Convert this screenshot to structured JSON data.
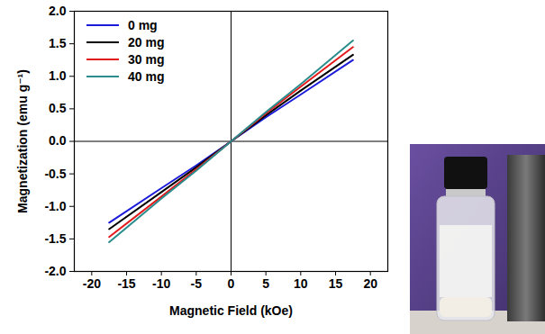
{
  "chart_data": {
    "type": "line",
    "x_label": "Magnetic Field (kOe)",
    "y_label": "Magnetization (emu g⁻¹)",
    "x": [
      -17.5,
      -10,
      -5,
      0,
      5,
      10,
      17.5
    ],
    "series": [
      {
        "name": "0 mg",
        "color": "#1a1adb",
        "values": [
          -1.25,
          -0.72,
          -0.37,
          0,
          0.37,
          0.72,
          1.25
        ]
      },
      {
        "name": "20 mg",
        "color": "#000000",
        "values": [
          -1.35,
          -0.78,
          -0.4,
          0,
          0.4,
          0.78,
          1.33
        ]
      },
      {
        "name": "30 mg",
        "color": "#e31a1c",
        "values": [
          -1.47,
          -0.85,
          -0.43,
          0,
          0.43,
          0.84,
          1.45
        ]
      },
      {
        "name": "40 mg",
        "color": "#2a8c8c",
        "values": [
          -1.55,
          -0.88,
          -0.45,
          0,
          0.45,
          0.88,
          1.55
        ]
      }
    ],
    "xlim": [
      -22.5,
      22.5
    ],
    "xticks": [
      -20,
      -15,
      -10,
      -5,
      0,
      5,
      10,
      15,
      20
    ],
    "ylim": [
      -2.0,
      2.0
    ],
    "yticks": [
      {
        "value": -2,
        "label": "-2.0"
      },
      -1.5,
      {
        "value": -1,
        "label": "-1.0"
      },
      -0.5,
      {
        "value": 0,
        "label": "0.0"
      },
      0.5,
      {
        "value": 1,
        "label": "1.0"
      },
      1.5,
      {
        "value": 2,
        "label": "2.0"
      }
    ],
    "legend": "top-left",
    "grid": false
  }
}
